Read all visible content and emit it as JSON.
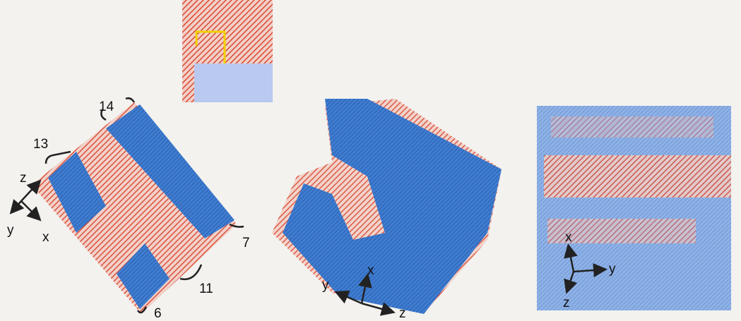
{
  "panel_a": {
    "brackets": [
      "14",
      "13",
      "7",
      "11",
      "6"
    ],
    "axes": [
      "z",
      "y",
      "x"
    ]
  },
  "panel_b": {
    "axes": [
      "x",
      "y",
      "z"
    ]
  },
  "panel_c": {
    "axes": [
      "x",
      "y",
      "z"
    ]
  }
}
